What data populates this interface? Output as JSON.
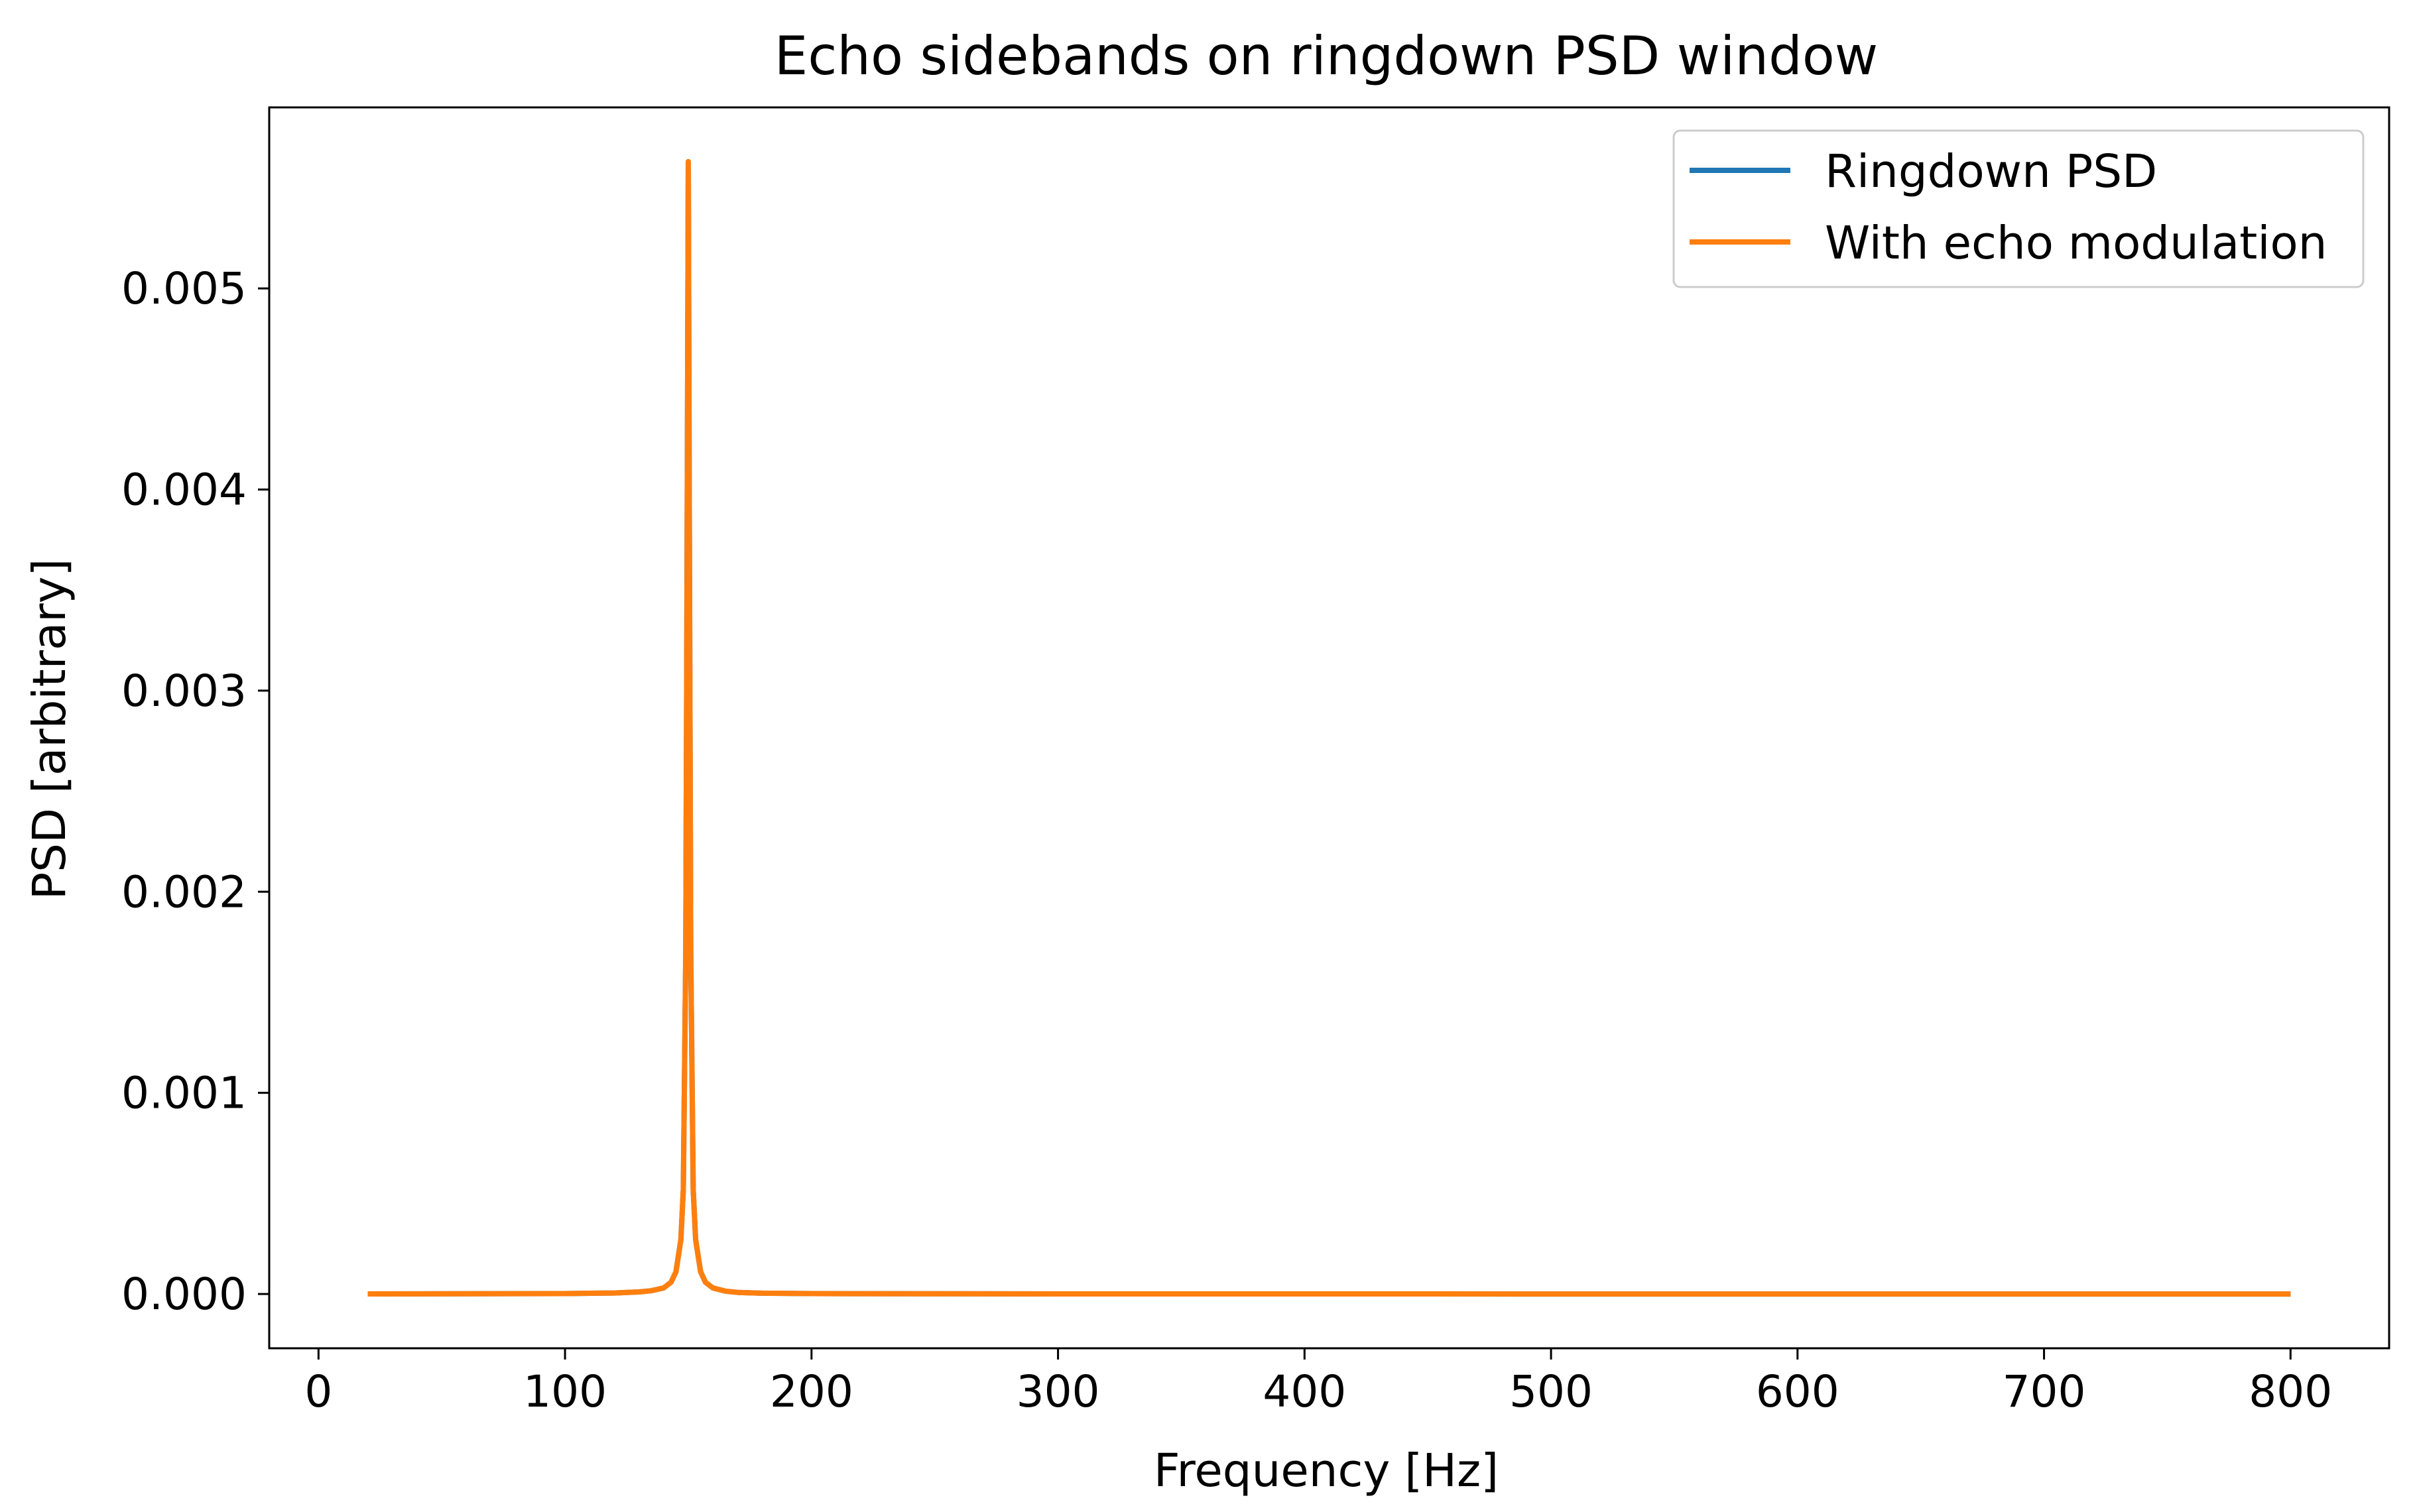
{
  "chart_data": {
    "type": "line",
    "title": "Echo sidebands on ringdown PSD window",
    "xlabel": "Frequency [Hz]",
    "ylabel": "PSD [arbitrary]",
    "xlim": [
      -20,
      840
    ],
    "ylim": [
      -0.00027,
      0.0059
    ],
    "xticks": [
      0,
      100,
      200,
      300,
      400,
      500,
      600,
      700,
      800
    ],
    "xtick_labels": [
      "0",
      "100",
      "200",
      "300",
      "400",
      "500",
      "600",
      "700",
      "800"
    ],
    "yticks": [
      0,
      0.001,
      0.002,
      0.003,
      0.004,
      0.005
    ],
    "ytick_labels": [
      "0.000",
      "0.001",
      "0.002",
      "0.003",
      "0.004",
      "0.005"
    ],
    "grid": false,
    "legend": "top-right",
    "series": [
      {
        "name": "Ringdown PSD",
        "color": "#1f77b4",
        "x": [
          20,
          60,
          100,
          120,
          130,
          135,
          140,
          143,
          145,
          147,
          148,
          149,
          149.5,
          150,
          150.5,
          151,
          152,
          153,
          155,
          157,
          160,
          165,
          170,
          180,
          200,
          250,
          300,
          400,
          500,
          600,
          700,
          800
        ],
        "y": [
          3e-07,
          8e-07,
          2e-06,
          5e-06,
          1e-05,
          1.6e-05,
          3e-05,
          5.8e-05,
          0.00011,
          0.00027,
          0.00052,
          0.0017,
          0.0036,
          0.00563,
          0.0036,
          0.0017,
          0.00052,
          0.00027,
          0.00011,
          5.8e-05,
          3e-05,
          1.4e-05,
          8e-06,
          4e-06,
          2e-06,
          8e-07,
          4e-07,
          2e-07,
          1e-07,
          7e-08,
          5e-08,
          4e-08
        ]
      },
      {
        "name": "With echo modulation",
        "color": "#ff7f0e",
        "x": [
          20,
          60,
          100,
          120,
          130,
          135,
          140,
          143,
          145,
          147,
          148,
          149,
          149.5,
          150,
          150.5,
          151,
          152,
          153,
          155,
          157,
          160,
          165,
          170,
          180,
          200,
          250,
          300,
          400,
          500,
          600,
          700,
          800
        ],
        "y": [
          3e-07,
          8e-07,
          2e-06,
          5e-06,
          1e-05,
          1.6e-05,
          3e-05,
          5.8e-05,
          0.00011,
          0.00027,
          0.00052,
          0.0017,
          0.0036,
          0.00563,
          0.0036,
          0.0017,
          0.00052,
          0.00027,
          0.00011,
          5.8e-05,
          3e-05,
          1.4e-05,
          8e-06,
          4e-06,
          2e-06,
          8e-07,
          4e-07,
          2e-07,
          1e-07,
          7e-08,
          5e-08,
          4e-08
        ]
      }
    ]
  }
}
